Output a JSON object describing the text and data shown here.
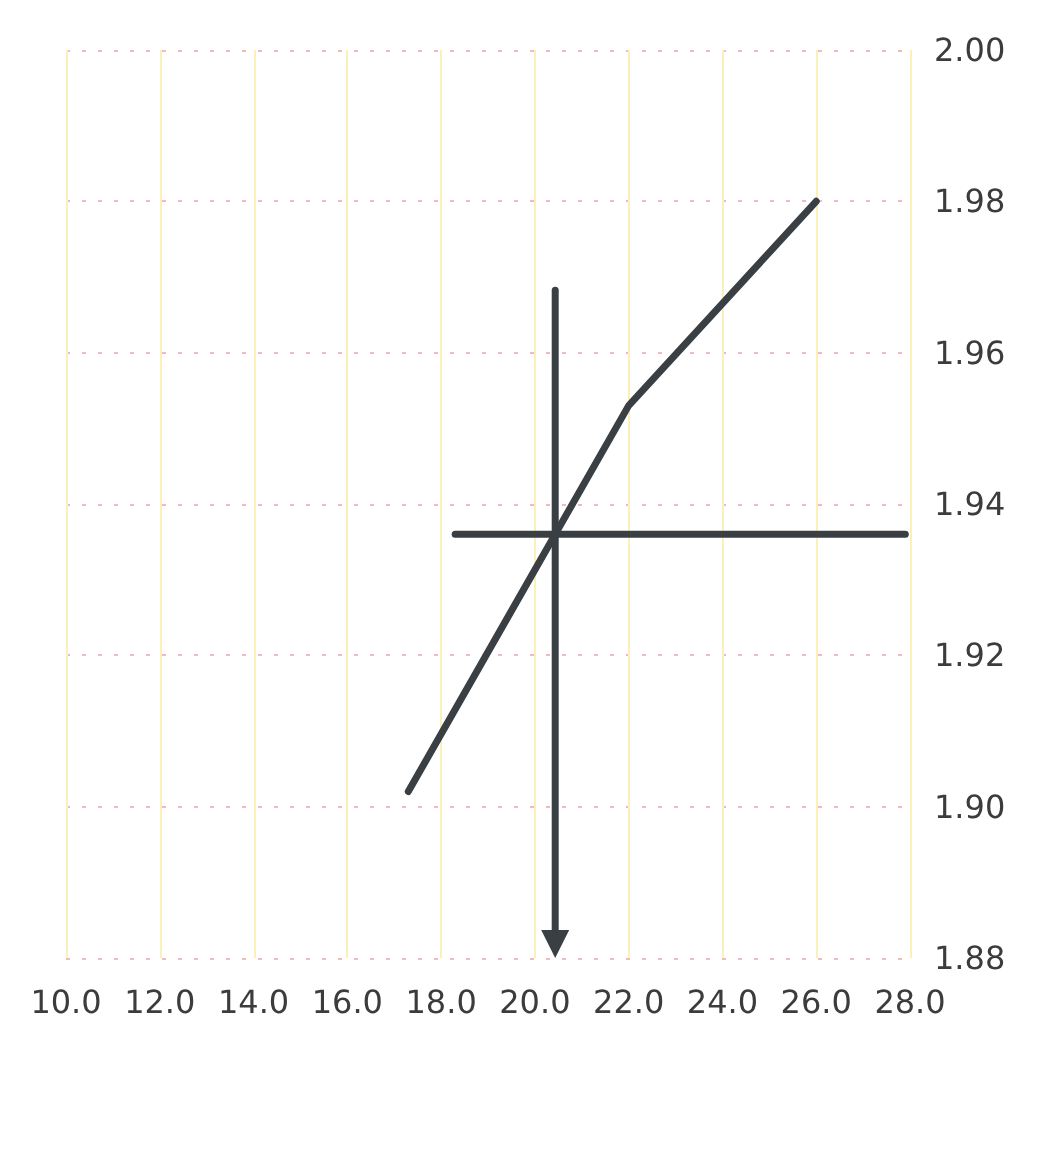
{
  "chart_data": {
    "type": "line",
    "xlim": [
      10,
      28
    ],
    "xticks": [
      {
        "value": 10,
        "label": "10.0"
      },
      {
        "value": 12,
        "label": "12.0"
      },
      {
        "value": 14,
        "label": "14.0"
      },
      {
        "value": 16,
        "label": "16.0"
      },
      {
        "value": 18,
        "label": "18.0"
      },
      {
        "value": 20,
        "label": "20.0"
      },
      {
        "value": 22,
        "label": "22.0"
      },
      {
        "value": 24,
        "label": "24.0"
      },
      {
        "value": 26,
        "label": "26.0"
      },
      {
        "value": 28,
        "label": "28.0"
      }
    ],
    "ylim": [
      1.88,
      2.0
    ],
    "yticks": [
      1.88,
      {
        "value": 1.9,
        "label": "1.90"
      },
      1.92,
      1.94,
      1.96,
      1.98,
      {
        "value": 2.0,
        "label": "2.00"
      }
    ],
    "grid": true,
    "series": [
      {
        "color": "#3a3f44",
        "x": [
          17.3,
          22.0,
          26.0
        ],
        "values": [
          1.902,
          1.953,
          1.98
        ]
      },
      {
        "color": "#3a3f44",
        "x": [
          18.3,
          27.9
        ],
        "values": [
          1.936,
          1.936
        ]
      }
    ]
  }
}
